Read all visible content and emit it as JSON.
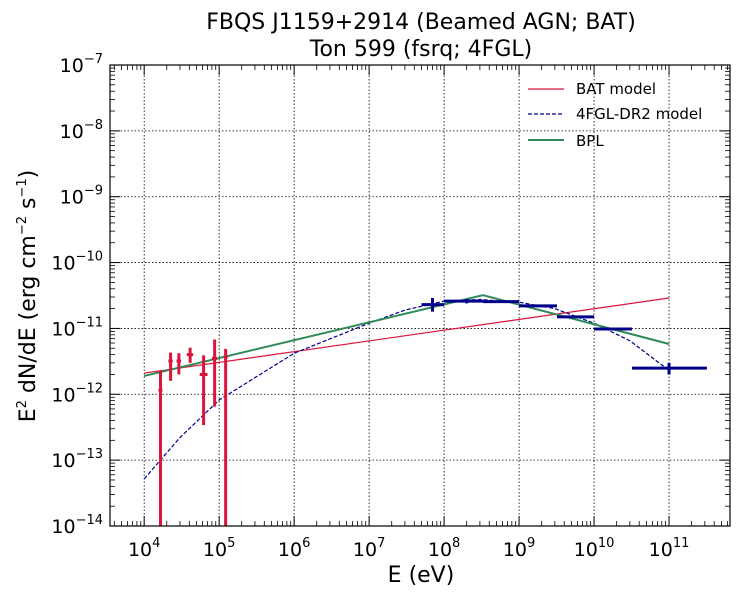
{
  "chart_data": {
    "type": "scatter",
    "title_lines": [
      "FBQS J1159+2914 (Beamed AGN; BAT)",
      "Ton 599 (fsrq; 4FGL)"
    ],
    "xlabel": {
      "base": "E (eV)"
    },
    "ylabel": {
      "p1": "E",
      "s1": "2",
      "p2": " dN/dE (erg cm",
      "s2": "−2",
      "p3": " s",
      "s3": "−1",
      "p4": ")"
    },
    "xscale": "log",
    "yscale": "log",
    "xlim": [
      3500,
      650000000000.0
    ],
    "ylim": [
      1e-14,
      1e-07
    ],
    "grid": true,
    "legend_position": "top-right",
    "x_ticks": [
      {
        "base": "10",
        "exp": "4",
        "value": 10000.0
      },
      {
        "base": "10",
        "exp": "5",
        "value": 100000.0
      },
      {
        "base": "10",
        "exp": "6",
        "value": 1000000.0
      },
      {
        "base": "10",
        "exp": "7",
        "value": 10000000.0
      },
      {
        "base": "10",
        "exp": "8",
        "value": 100000000.0
      },
      {
        "base": "10",
        "exp": "9",
        "value": 1000000000.0
      },
      {
        "base": "10",
        "exp": "10",
        "value": 10000000000.0
      },
      {
        "base": "10",
        "exp": "11",
        "value": 100000000000.0
      }
    ],
    "y_ticks": [
      {
        "base": "10",
        "exp": "−14",
        "value": 1e-14
      },
      {
        "base": "10",
        "exp": "−13",
        "value": 1e-13
      },
      {
        "base": "10",
        "exp": "−12",
        "value": 1e-12
      },
      {
        "base": "10",
        "exp": "−11",
        "value": 1e-11
      },
      {
        "base": "10",
        "exp": "−10",
        "value": 1e-10
      },
      {
        "base": "10",
        "exp": "−9",
        "value": 1e-09
      },
      {
        "base": "10",
        "exp": "−8",
        "value": 1e-08
      },
      {
        "base": "10",
        "exp": "−7",
        "value": 1e-07
      }
    ],
    "series": [
      {
        "name": "BAT model",
        "kind": "line",
        "color": "#dc143c",
        "dash": "solid",
        "points": [
          [
            10000.0,
            2.1e-12
          ],
          [
            100000000000.0,
            2.9e-11
          ]
        ]
      },
      {
        "name": "4FGL-DR2 model",
        "kind": "line",
        "color": "#00008b",
        "dash": "dashed",
        "points": [
          [
            10000.0,
            5.2e-14
          ],
          [
            30000.0,
            2.2e-13
          ],
          [
            100000.0,
            8.2e-13
          ],
          [
            1000000.0,
            4.2e-12
          ],
          [
            10000000.0,
            1.2e-11
          ],
          [
            30000000.0,
            1.9e-11
          ],
          [
            100000000.0,
            2.6e-11
          ],
          [
            300000000.0,
            2.75e-11
          ],
          [
            1000000000.0,
            2.5e-11
          ],
          [
            3000000000.0,
            2e-11
          ],
          [
            10000000000.0,
            1.2e-11
          ],
          [
            30000000000.0,
            6.5e-12
          ],
          [
            100000000000.0,
            2.3e-12
          ]
        ]
      },
      {
        "name": "BPL",
        "kind": "line",
        "color": "#2e8b57",
        "dash": "solid",
        "points": [
          [
            10000.0,
            1.9e-12
          ],
          [
            330000000.0,
            3.2e-11
          ],
          [
            100000000000.0,
            5.8e-12
          ]
        ]
      }
    ],
    "bat_points": {
      "color": "#dc143c",
      "points": [
        {
          "x": 16500,
          "xerr": [
            15500,
            17500
          ],
          "y": 1.15e-12,
          "ylo": 1e-14,
          "yhi": 2.3e-12
        },
        {
          "x": 22500,
          "xerr": [
            21000,
            24000
          ],
          "y": 3.2e-12,
          "ylo": 1.6e-12,
          "yhi": 4.3e-12
        },
        {
          "x": 29000,
          "xerr": [
            27000,
            31000
          ],
          "y": 3.2e-12,
          "ylo": 2e-12,
          "yhi": 4.2e-12
        },
        {
          "x": 41000,
          "xerr": [
            37000,
            45000
          ],
          "y": 4e-12,
          "ylo": 3e-12,
          "yhi": 5.1e-12
        },
        {
          "x": 62000,
          "xerr": [
            55000,
            70000
          ],
          "y": 2e-12,
          "ylo": 3.4e-13,
          "yhi": 3.9e-12
        },
        {
          "x": 87000,
          "xerr": [
            80000,
            94000
          ],
          "y": 3.5e-12,
          "ylo": 6.5e-13,
          "yhi": 6.8e-12
        },
        {
          "x": 122000,
          "xerr": [
            115000,
            130000
          ],
          "y": 3.7e-12,
          "ylo": 1e-14,
          "yhi": 4.9e-12
        }
      ]
    },
    "fermi_points": {
      "color": "#00008b",
      "points": [
        {
          "x": 70000000.0,
          "xerr": [
            50000000.0,
            100000000.0
          ],
          "y": 2.3e-11,
          "ylo": 1.8e-11,
          "yhi": 2.9e-11
        },
        {
          "x": 200000000.0,
          "xerr": [
            100000000.0,
            330000000.0
          ],
          "y": 2.6e-11,
          "ylo": 2.4e-11,
          "yhi": 2.8e-11
        },
        {
          "x": 600000000.0,
          "xerr": [
            330000000.0,
            1000000000.0
          ],
          "y": 2.55e-11,
          "ylo": 2.45e-11,
          "yhi": 2.65e-11
        },
        {
          "x": 1900000000.0,
          "xerr": [
            1000000000.0,
            3200000000.0
          ],
          "y": 2.2e-11,
          "ylo": 2.1e-11,
          "yhi": 2.3e-11
        },
        {
          "x": 6000000000.0,
          "xerr": [
            3200000000.0,
            10000000000.0
          ],
          "y": 1.5e-11,
          "ylo": 1.45e-11,
          "yhi": 1.55e-11
        },
        {
          "x": 19000000000.0,
          "xerr": [
            10000000000.0,
            32000000000.0
          ],
          "y": 9.8e-12,
          "ylo": 9.5e-12,
          "yhi": 1.01e-11
        },
        {
          "x": 100000000000.0,
          "xerr": [
            32000000000.0,
            320000000000.0
          ],
          "y": 2.5e-12,
          "ylo": 2e-12,
          "yhi": 3e-12
        }
      ]
    }
  }
}
